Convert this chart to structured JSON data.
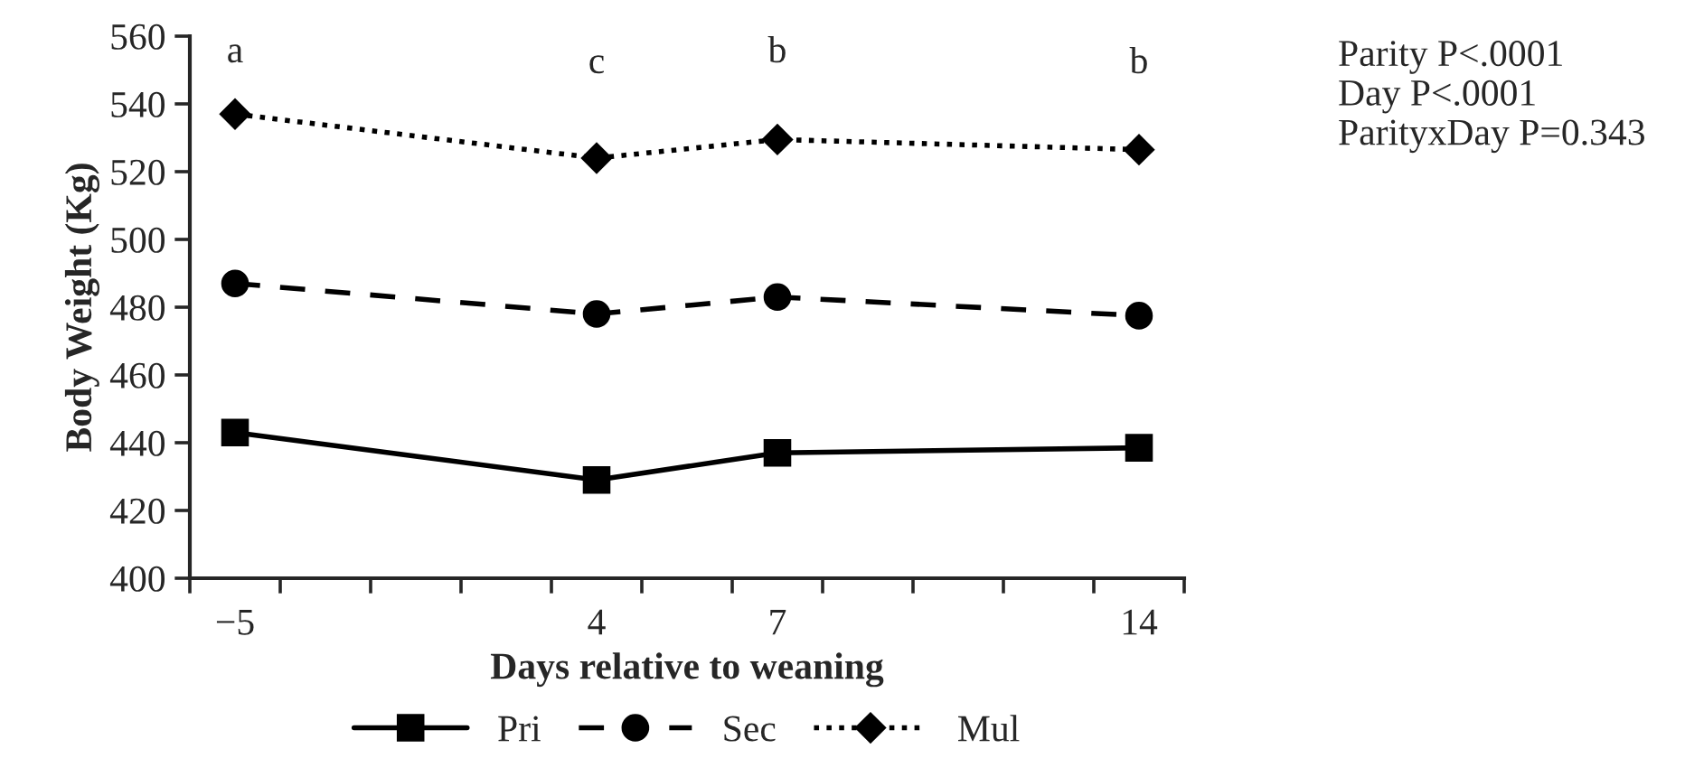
{
  "chart_data": {
    "type": "line",
    "xlabel": "Days relative to weaning",
    "ylabel": "Body Weight (Kg)",
    "categories": [
      "−5",
      null,
      null,
      null,
      "4",
      null,
      "7",
      null,
      null,
      null,
      "14"
    ],
    "series": [
      {
        "name": "Pri",
        "color": "#000000",
        "marker": "square",
        "line_style": "solid",
        "values": [
          443,
          null,
          null,
          null,
          429,
          null,
          437,
          null,
          null,
          null,
          438.5
        ]
      },
      {
        "name": "Sec",
        "color": "#000000",
        "marker": "circle",
        "line_style": "dashed",
        "values": [
          487,
          null,
          null,
          null,
          478,
          null,
          483,
          null,
          null,
          null,
          477.5
        ]
      },
      {
        "name": "Mul",
        "color": "#000000",
        "marker": "diamond",
        "line_style": "dotted",
        "values": [
          537,
          null,
          null,
          null,
          524,
          null,
          529.5,
          null,
          null,
          null,
          526.5
        ]
      }
    ],
    "ylim": [
      400,
      560
    ],
    "yticks": [
      400,
      420,
      440,
      460,
      480,
      500,
      520,
      540,
      560
    ],
    "grid": false,
    "legend": "bottom",
    "annotations": [
      "a",
      "c",
      "b",
      "b",
      "Parity P<.0001\nDay P<.0001\nParityxDay P=0.343"
    ]
  }
}
